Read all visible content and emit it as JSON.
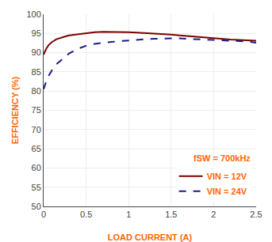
{
  "chart_data": {
    "type": "line",
    "xlabel": "LOAD CURRENT (A)",
    "ylabel": "EFFICIENCY (%)",
    "annotations": [
      "fSW = 700kHz"
    ],
    "xlim": [
      0,
      2.5
    ],
    "ylim": [
      50,
      100
    ],
    "xticks": [
      0,
      0.5,
      1,
      1.5,
      2,
      2.5
    ],
    "yticks": [
      50,
      55,
      60,
      65,
      70,
      75,
      80,
      85,
      90,
      95,
      100
    ],
    "grid": true,
    "legend": "lower right",
    "x": [
      0.0,
      0.03,
      0.06,
      0.1,
      0.15,
      0.2,
      0.25,
      0.3,
      0.4,
      0.5,
      0.6,
      0.7,
      0.8,
      0.9,
      1.0,
      1.1,
      1.2,
      1.3,
      1.4,
      1.5,
      1.6,
      1.7,
      1.8,
      1.9,
      2.0,
      2.1,
      2.2,
      2.3,
      2.4,
      2.5
    ],
    "series": [
      {
        "name": "VIN = 12V",
        "color": "#7b0000",
        "line_style": "solid",
        "values": [
          89.5,
          91.0,
          92.0,
          92.8,
          93.5,
          93.9,
          94.2,
          94.5,
          94.8,
          95.1,
          95.3,
          95.4,
          95.4,
          95.4,
          95.3,
          95.2,
          95.1,
          95.0,
          94.8,
          94.7,
          94.5,
          94.3,
          94.1,
          93.9,
          93.7,
          93.5,
          93.4,
          93.3,
          93.2,
          93.1
        ]
      },
      {
        "name": "VIN = 24V",
        "color": "#1a1a8c",
        "line_style": "dashed",
        "values": [
          80.5,
          82.5,
          84.0,
          85.5,
          87.0,
          88.0,
          89.0,
          89.8,
          91.0,
          91.8,
          92.3,
          92.6,
          92.8,
          93.0,
          93.2,
          93.4,
          93.5,
          93.6,
          93.7,
          93.7,
          93.7,
          93.6,
          93.5,
          93.4,
          93.3,
          93.2,
          93.1,
          93.0,
          92.9,
          92.6
        ]
      }
    ]
  }
}
